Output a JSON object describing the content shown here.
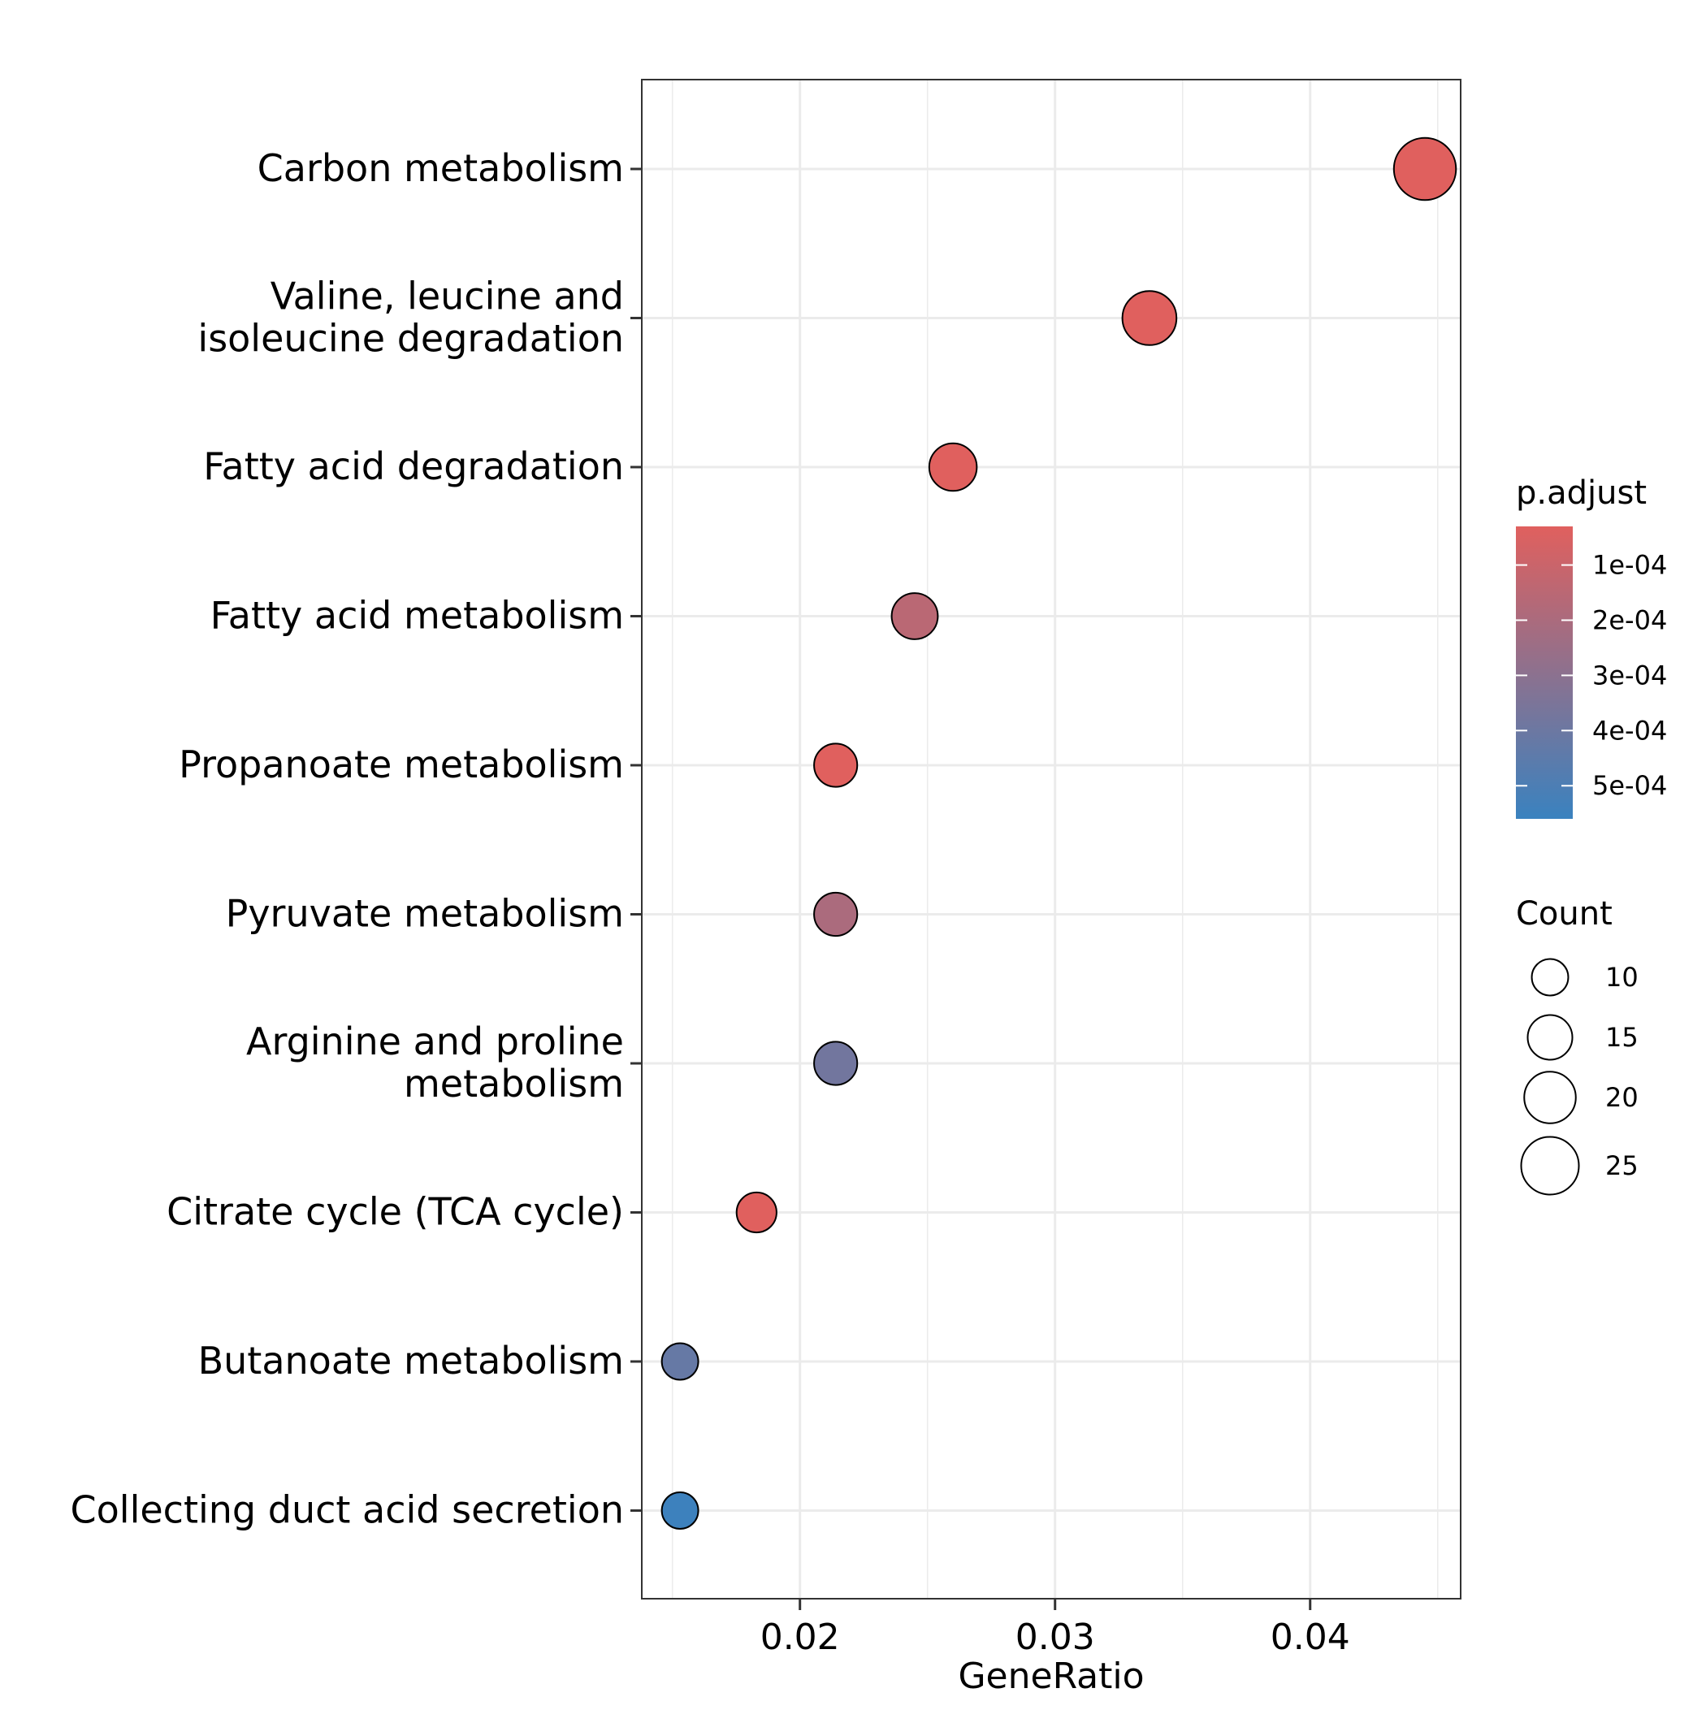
{
  "chart_data": {
    "type": "scatter",
    "xlabel": "GeneRatio",
    "ylabel": "",
    "title": "",
    "xlim": [
      0.0138,
      0.0459
    ],
    "x_ticks": [
      "0.02",
      "0.03",
      "0.04"
    ],
    "x_tick_values": [
      0.02,
      0.03,
      0.04
    ],
    "grid": true,
    "legend_position": "right",
    "categories": [
      [
        "Carbon metabolism"
      ],
      [
        "Valine, leucine and",
        "isoleucine degradation"
      ],
      [
        "Fatty acid degradation"
      ],
      [
        "Fatty acid metabolism"
      ],
      [
        "Propanoate metabolism"
      ],
      [
        "Pyruvate metabolism"
      ],
      [
        "Arginine and proline",
        "metabolism"
      ],
      [
        "Citrate cycle (TCA cycle)"
      ],
      [
        "Butanoate metabolism"
      ],
      [
        "Collecting duct acid secretion"
      ]
    ],
    "points": [
      {
        "x": 0.0445,
        "count": 29,
        "p_adjust": 3e-05
      },
      {
        "x": 0.0337,
        "count": 22,
        "p_adjust": 3e-05
      },
      {
        "x": 0.026,
        "count": 17,
        "p_adjust": 3e-05
      },
      {
        "x": 0.0245,
        "count": 16,
        "p_adjust": 0.00015
      },
      {
        "x": 0.0214,
        "count": 14,
        "p_adjust": 3e-05
      },
      {
        "x": 0.0214,
        "count": 14,
        "p_adjust": 0.0002
      },
      {
        "x": 0.0214,
        "count": 14,
        "p_adjust": 0.00038
      },
      {
        "x": 0.0183,
        "count": 12,
        "p_adjust": 3e-05
      },
      {
        "x": 0.0153,
        "count": 10,
        "p_adjust": 0.00042
      },
      {
        "x": 0.0153,
        "count": 10,
        "p_adjust": 0.00055
      }
    ],
    "color_legend": {
      "title": "p.adjust",
      "ticks": [
        "1e-04",
        "2e-04",
        "3e-04",
        "4e-04",
        "5e-04"
      ],
      "tick_values": [
        0.0001,
        0.0002,
        0.0003,
        0.0004,
        0.0005
      ],
      "range": [
        3e-05,
        0.00056
      ],
      "low_color": "#E0605E",
      "high_color": "#3A82BF"
    },
    "size_legend": {
      "title": "Count",
      "labels": [
        "10",
        "15",
        "20",
        "25"
      ],
      "values": [
        10,
        15,
        20,
        25
      ]
    },
    "colors": {
      "grid": "#EBEBEB",
      "panel_border": "#333333",
      "point_outline": "#000000"
    }
  }
}
